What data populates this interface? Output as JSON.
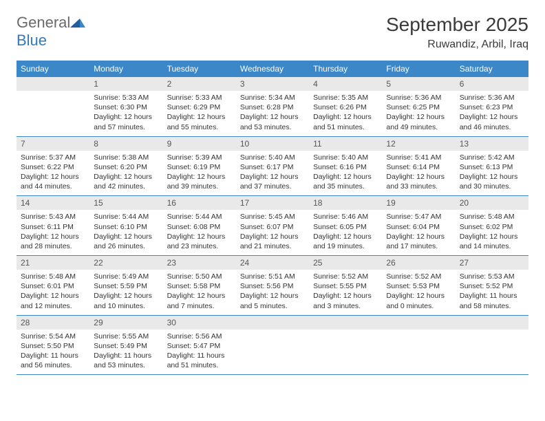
{
  "brand": {
    "part1": "General",
    "part2": "Blue"
  },
  "title": "September 2025",
  "location": "Ruwandiz, Arbil, Iraq",
  "colors": {
    "header_bg": "#3b87c8",
    "header_fg": "#ffffff",
    "daynum_bg": "#e9e9e9",
    "text": "#333333",
    "rule": "#3b87c8"
  },
  "weekdays": [
    "Sunday",
    "Monday",
    "Tuesday",
    "Wednesday",
    "Thursday",
    "Friday",
    "Saturday"
  ],
  "start_offset": 1,
  "days": [
    {
      "n": 1,
      "sr": "5:33 AM",
      "ss": "6:30 PM",
      "dl": "12 hours and 57 minutes."
    },
    {
      "n": 2,
      "sr": "5:33 AM",
      "ss": "6:29 PM",
      "dl": "12 hours and 55 minutes."
    },
    {
      "n": 3,
      "sr": "5:34 AM",
      "ss": "6:28 PM",
      "dl": "12 hours and 53 minutes."
    },
    {
      "n": 4,
      "sr": "5:35 AM",
      "ss": "6:26 PM",
      "dl": "12 hours and 51 minutes."
    },
    {
      "n": 5,
      "sr": "5:36 AM",
      "ss": "6:25 PM",
      "dl": "12 hours and 49 minutes."
    },
    {
      "n": 6,
      "sr": "5:36 AM",
      "ss": "6:23 PM",
      "dl": "12 hours and 46 minutes."
    },
    {
      "n": 7,
      "sr": "5:37 AM",
      "ss": "6:22 PM",
      "dl": "12 hours and 44 minutes."
    },
    {
      "n": 8,
      "sr": "5:38 AM",
      "ss": "6:20 PM",
      "dl": "12 hours and 42 minutes."
    },
    {
      "n": 9,
      "sr": "5:39 AM",
      "ss": "6:19 PM",
      "dl": "12 hours and 39 minutes."
    },
    {
      "n": 10,
      "sr": "5:40 AM",
      "ss": "6:17 PM",
      "dl": "12 hours and 37 minutes."
    },
    {
      "n": 11,
      "sr": "5:40 AM",
      "ss": "6:16 PM",
      "dl": "12 hours and 35 minutes."
    },
    {
      "n": 12,
      "sr": "5:41 AM",
      "ss": "6:14 PM",
      "dl": "12 hours and 33 minutes."
    },
    {
      "n": 13,
      "sr": "5:42 AM",
      "ss": "6:13 PM",
      "dl": "12 hours and 30 minutes."
    },
    {
      "n": 14,
      "sr": "5:43 AM",
      "ss": "6:11 PM",
      "dl": "12 hours and 28 minutes."
    },
    {
      "n": 15,
      "sr": "5:44 AM",
      "ss": "6:10 PM",
      "dl": "12 hours and 26 minutes."
    },
    {
      "n": 16,
      "sr": "5:44 AM",
      "ss": "6:08 PM",
      "dl": "12 hours and 23 minutes."
    },
    {
      "n": 17,
      "sr": "5:45 AM",
      "ss": "6:07 PM",
      "dl": "12 hours and 21 minutes."
    },
    {
      "n": 18,
      "sr": "5:46 AM",
      "ss": "6:05 PM",
      "dl": "12 hours and 19 minutes."
    },
    {
      "n": 19,
      "sr": "5:47 AM",
      "ss": "6:04 PM",
      "dl": "12 hours and 17 minutes."
    },
    {
      "n": 20,
      "sr": "5:48 AM",
      "ss": "6:02 PM",
      "dl": "12 hours and 14 minutes."
    },
    {
      "n": 21,
      "sr": "5:48 AM",
      "ss": "6:01 PM",
      "dl": "12 hours and 12 minutes."
    },
    {
      "n": 22,
      "sr": "5:49 AM",
      "ss": "5:59 PM",
      "dl": "12 hours and 10 minutes."
    },
    {
      "n": 23,
      "sr": "5:50 AM",
      "ss": "5:58 PM",
      "dl": "12 hours and 7 minutes."
    },
    {
      "n": 24,
      "sr": "5:51 AM",
      "ss": "5:56 PM",
      "dl": "12 hours and 5 minutes."
    },
    {
      "n": 25,
      "sr": "5:52 AM",
      "ss": "5:55 PM",
      "dl": "12 hours and 3 minutes."
    },
    {
      "n": 26,
      "sr": "5:52 AM",
      "ss": "5:53 PM",
      "dl": "12 hours and 0 minutes."
    },
    {
      "n": 27,
      "sr": "5:53 AM",
      "ss": "5:52 PM",
      "dl": "11 hours and 58 minutes."
    },
    {
      "n": 28,
      "sr": "5:54 AM",
      "ss": "5:50 PM",
      "dl": "11 hours and 56 minutes."
    },
    {
      "n": 29,
      "sr": "5:55 AM",
      "ss": "5:49 PM",
      "dl": "11 hours and 53 minutes."
    },
    {
      "n": 30,
      "sr": "5:56 AM",
      "ss": "5:47 PM",
      "dl": "11 hours and 51 minutes."
    }
  ],
  "labels": {
    "sunrise": "Sunrise:",
    "sunset": "Sunset:",
    "daylight": "Daylight:"
  }
}
